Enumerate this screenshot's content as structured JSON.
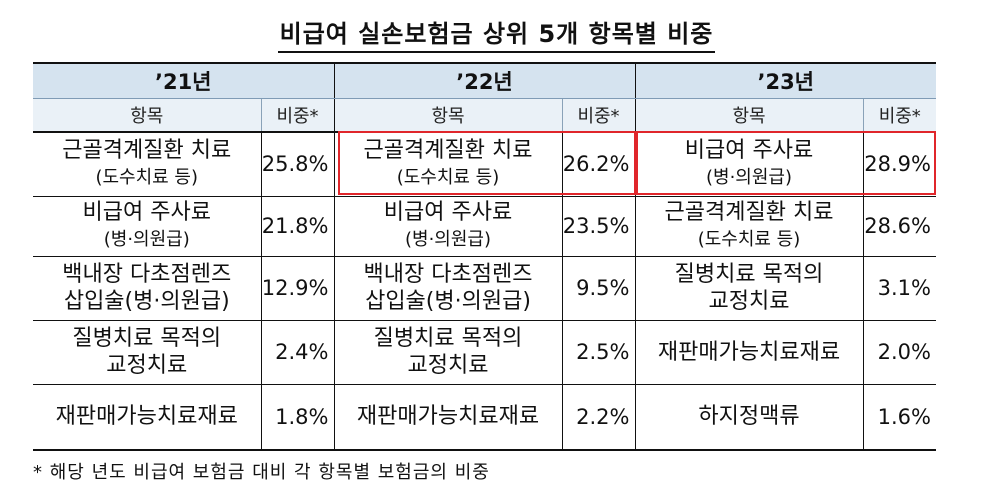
{
  "title": "비급여 실손보험금 상위 5개 항목별 비중",
  "years": [
    "’21년",
    "’22년",
    "’23년"
  ],
  "col_item": "항목",
  "col_share": "비중*",
  "rows": [
    [
      {
        "item": "근골격계질환 치료",
        "sub": "(도수치료 등)",
        "share": "25.8%"
      },
      {
        "item": "근골격계질환 치료",
        "sub": "(도수치료 등)",
        "share": "26.2%"
      },
      {
        "item": "비급여 주사료",
        "sub": "(병·의원급)",
        "share": "28.9%"
      }
    ],
    [
      {
        "item": "비급여 주사료",
        "sub": "(병·의원급)",
        "share": "21.8%"
      },
      {
        "item": "비급여 주사료",
        "sub": "(병·의원급)",
        "share": "23.5%"
      },
      {
        "item": "근골격계질환 치료",
        "sub": "(도수치료 등)",
        "share": "28.6%"
      }
    ],
    [
      {
        "item": "백내장 다초점렌즈",
        "sub": "삽입술(병·의원급)",
        "share": "12.9%"
      },
      {
        "item": "백내장 다초점렌즈",
        "sub": "삽입술(병·의원급)",
        "share": "9.5%"
      },
      {
        "item": "질병치료 목적의",
        "sub": "교정치료",
        "share": "3.1%"
      }
    ],
    [
      {
        "item": "질병치료 목적의",
        "sub": "교정치료",
        "share": "2.4%"
      },
      {
        "item": "질병치료 목적의",
        "sub": "교정치료",
        "share": "2.5%"
      },
      {
        "item": "재판매가능치료재료",
        "sub": "",
        "share": "2.0%"
      }
    ],
    [
      {
        "item": "재판매가능치료재료",
        "sub": "",
        "share": "1.8%"
      },
      {
        "item": "재판매가능치료재료",
        "sub": "",
        "share": "2.2%"
      },
      {
        "item": "하지정맥류",
        "sub": "",
        "share": "1.6%"
      }
    ]
  ],
  "note": "* 해당 년도 비급여 보험금 대비 각 항목별 보험금의 비중",
  "highlight_color": "#e0262b",
  "header_color": "#d5e3ef"
}
